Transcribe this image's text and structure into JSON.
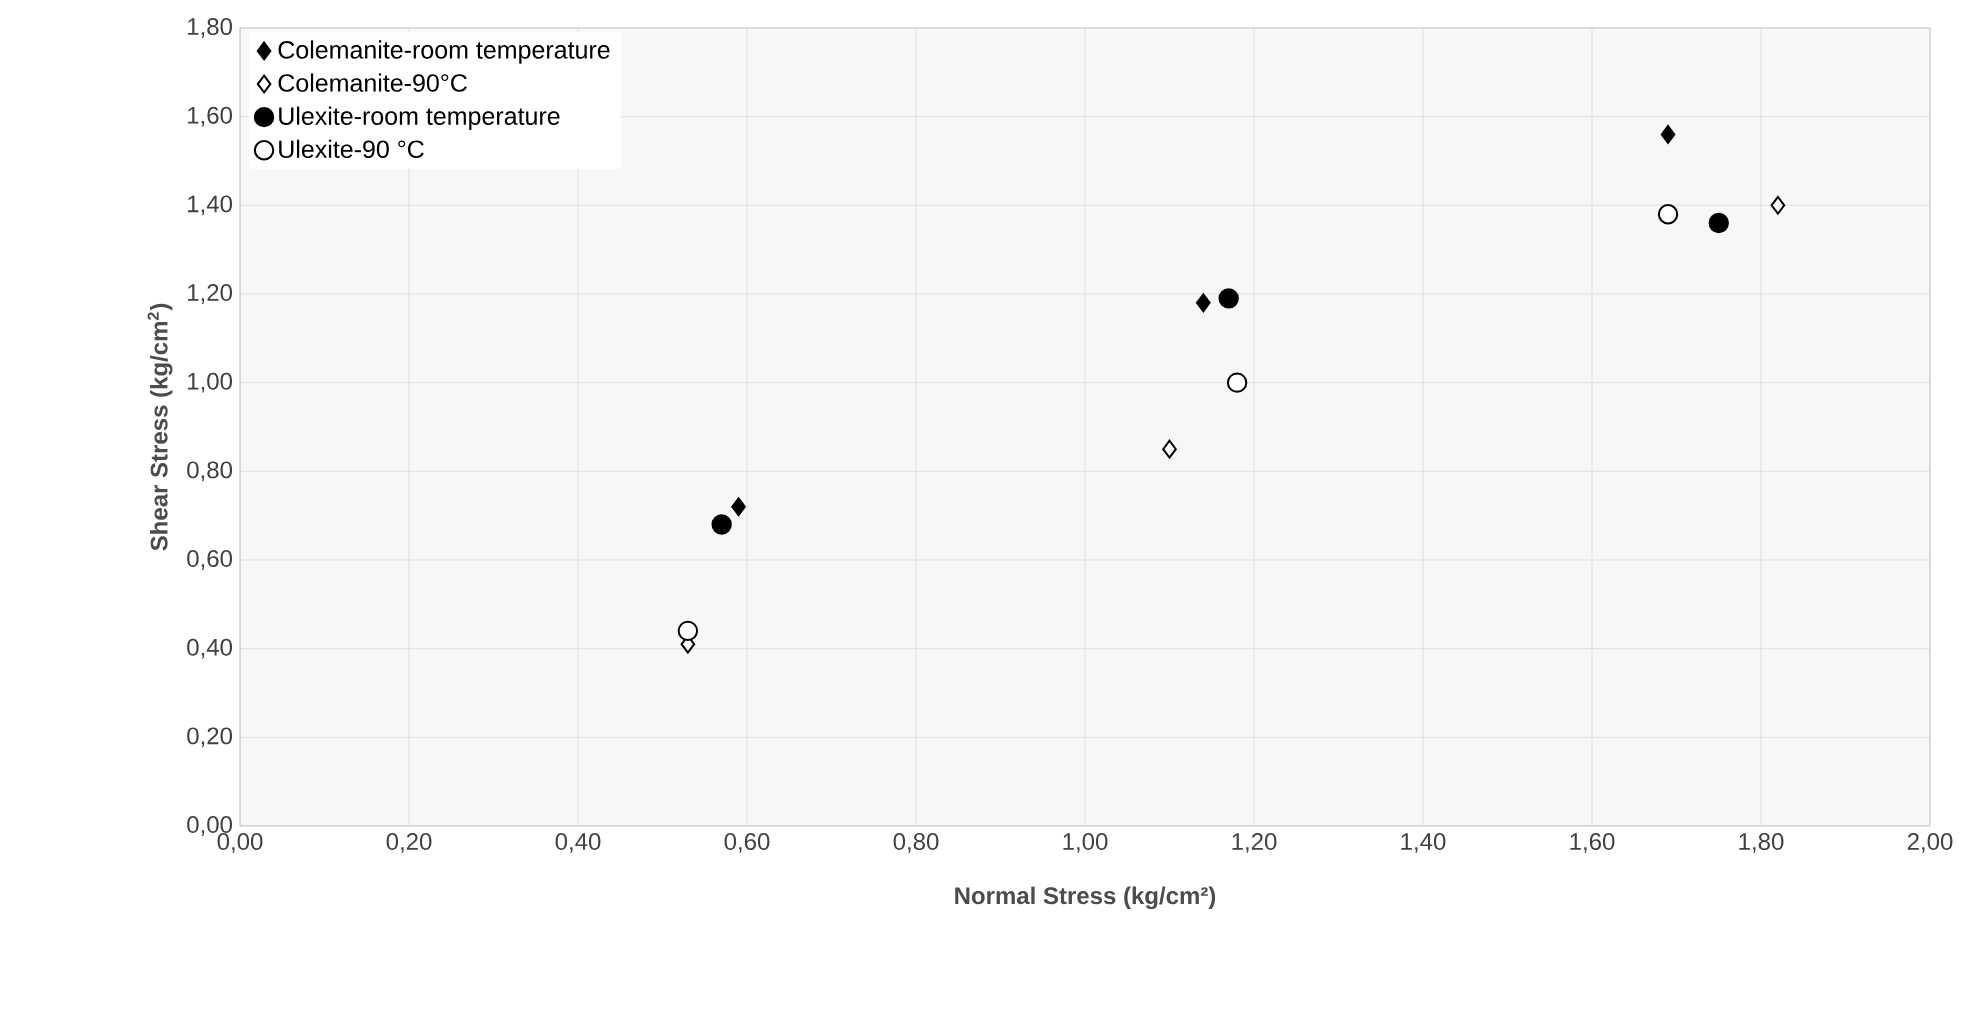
{
  "chart_data": {
    "type": "scatter",
    "xlabel": "Normal  Stress (kg/cm²)",
    "ylabel": "Shear Stress (kg/cm$^{2}$)",
    "xlim": [
      0,
      2
    ],
    "ylim": [
      0,
      1.8
    ],
    "xticks": [
      {
        "value": 0,
        "label": "0,00"
      },
      {
        "value": 0.2,
        "label": "0,20"
      },
      {
        "value": 0.4,
        "label": "0,40"
      },
      {
        "value": 0.6,
        "label": "0,60"
      },
      {
        "value": 0.8,
        "label": "0,80"
      },
      {
        "value": 1.0,
        "label": "1,00"
      },
      {
        "value": 1.2,
        "label": "1,20"
      },
      {
        "value": 1.4,
        "label": "1,40"
      },
      {
        "value": 1.6,
        "label": "1,60"
      },
      {
        "value": 1.8,
        "label": "1,80"
      },
      {
        "value": 2.0,
        "label": "2,00"
      }
    ],
    "yticks": [
      {
        "value": 0,
        "label": "0,00"
      },
      {
        "value": 0.2,
        "label": "0,20"
      },
      {
        "value": 0.4,
        "label": "0,40"
      },
      {
        "value": 0.6,
        "label": "0,60"
      },
      {
        "value": 0.8,
        "label": "0,80"
      },
      {
        "value": 1.0,
        "label": "1,00"
      },
      {
        "value": 1.2,
        "label": "1,20"
      },
      {
        "value": 1.4,
        "label": "1,40"
      },
      {
        "value": 1.6,
        "label": "1,60"
      },
      {
        "value": 1.8,
        "label": "1,80"
      }
    ],
    "grid": true,
    "legend": "top left",
    "series": [
      {
        "name": "Colemanite-room temperature",
        "color": "#000000",
        "marker": "diamond",
        "x": [
          0.59,
          1.14,
          1.69
        ],
        "values": [
          0.72,
          1.18,
          1.56
        ]
      },
      {
        "name": "Colemanite-90°C",
        "color": "#ffffff",
        "marker": "diamond",
        "x": [
          0.53,
          1.1,
          1.82
        ],
        "values": [
          0.41,
          0.85,
          1.4
        ]
      },
      {
        "name": "Ulexite-room temperature",
        "color": "#000000",
        "marker": "circle",
        "x": [
          0.57,
          1.17,
          1.75
        ],
        "values": [
          0.68,
          1.19,
          1.36
        ]
      },
      {
        "name": "Ulexite-90 °C",
        "color": "#ffffff",
        "marker": "circle",
        "x": [
          0.53,
          1.18,
          1.69
        ],
        "values": [
          0.44,
          1.0,
          1.38
        ]
      }
    ]
  }
}
